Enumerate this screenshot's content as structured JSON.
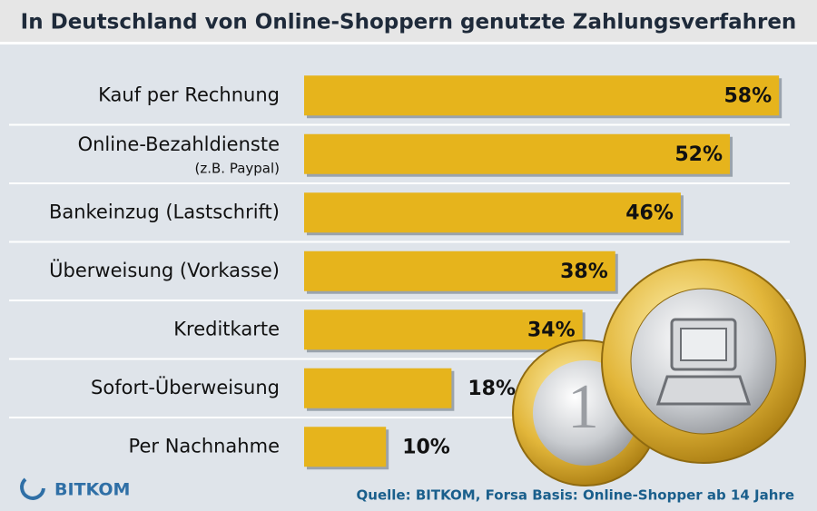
{
  "chart_data": {
    "type": "bar",
    "orientation": "horizontal",
    "title": "In Deutschland von Online-Shoppern genutzte Zahlungsverfahren",
    "categories": [
      "Kauf per Rechnung",
      "Online-Bezahldienste",
      "Bankeinzug (Lastschrift)",
      "Überweisung (Vorkasse)",
      "Kreditkarte",
      "Sofort-Überweisung",
      "Per Nachnahme"
    ],
    "category_notes": [
      null,
      "(z.B. Paypal)",
      null,
      null,
      null,
      null,
      null
    ],
    "values": [
      58,
      52,
      46,
      38,
      34,
      18,
      10
    ],
    "value_labels": [
      "58%",
      "52%",
      "46%",
      "38%",
      "34%",
      "18%",
      "10%"
    ],
    "color": "#e6b41c",
    "source": "Quelle: BITKOM, Forsa Basis: Online-Shopper ab 14 Jahre",
    "logo": "BITKOM"
  }
}
